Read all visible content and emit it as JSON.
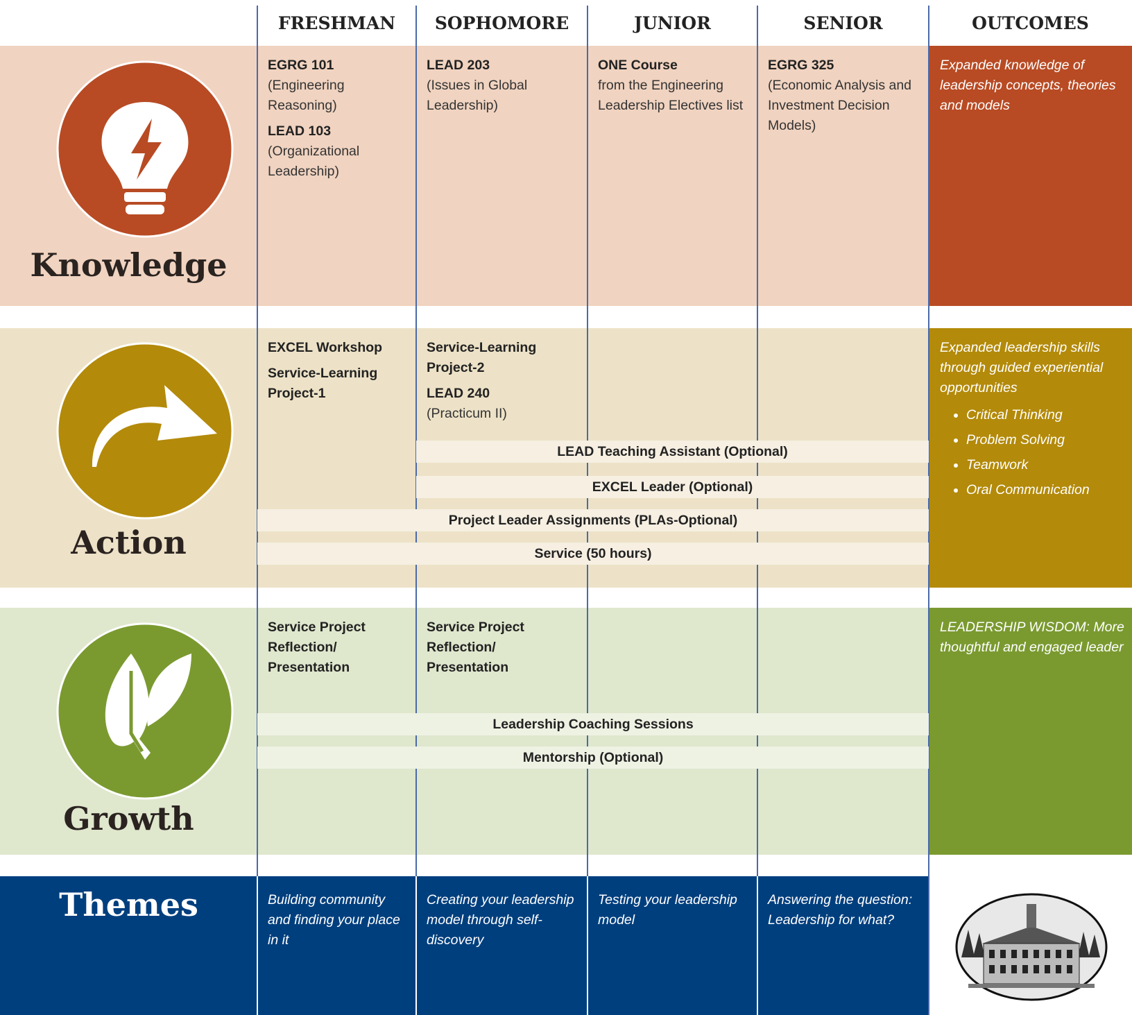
{
  "header": {
    "columns": [
      "FRESHMAN",
      "SOPHOMORE",
      "JUNIOR",
      "SENIOR",
      "OUTCOMES"
    ]
  },
  "knowledge": {
    "label": "Knowledge",
    "cells": [
      [
        {
          "title": "EGRG 101",
          "text": "(Engineering Reasoning)"
        },
        {
          "title": "LEAD 103",
          "text": "(Organizational Leadership)"
        }
      ],
      [
        {
          "title": "LEAD 203",
          "text": "(Issues in Global Leadership)"
        }
      ],
      [
        {
          "title": "ONE Course",
          "text": "from the Engineering Leadership Electives list"
        }
      ],
      [
        {
          "title": "EGRG 325",
          "text": "(Economic Analysis and Investment Decision Models)"
        }
      ]
    ],
    "outcome": "Expanded knowledge of leadership concepts, theories and models"
  },
  "action": {
    "label": "Action",
    "cells": [
      [
        {
          "title": "EXCEL Workshop"
        },
        {
          "title": "Service-Learning Project-1"
        }
      ],
      [
        {
          "title": "Service-Learning Project-2"
        },
        {
          "title": "LEAD 240",
          "text": "(Practicum II)"
        }
      ]
    ],
    "bars": [
      "LEAD Teaching Assistant (Optional)",
      "EXCEL Leader (Optional)",
      "Project Leader Assignments (PLAs-Optional)",
      "Service (50 hours)"
    ],
    "outcome": "Expanded leadership skills through guided experiential opportunities",
    "outcome_bullets": [
      "Critical Thinking",
      "Problem Solving",
      "Teamwork",
      "Oral Communication"
    ]
  },
  "growth": {
    "label": "Growth",
    "cells": [
      [
        {
          "title": "Service Project Reflection/ Presentation"
        }
      ],
      [
        {
          "title": "Service Project Reflection/ Presentation"
        }
      ]
    ],
    "bars": [
      "Leadership Coaching Sessions",
      "Mentorship (Optional)"
    ],
    "outcome": "LEADERSHIP WISDOM: More thoughtful and engaged leader"
  },
  "themes": {
    "label": "Themes",
    "cells": [
      "Building community and finding your place in it",
      "Creating your leadership model through self-discovery",
      "Testing your leadership model",
      "Answering the question: Leadership for what?"
    ]
  }
}
